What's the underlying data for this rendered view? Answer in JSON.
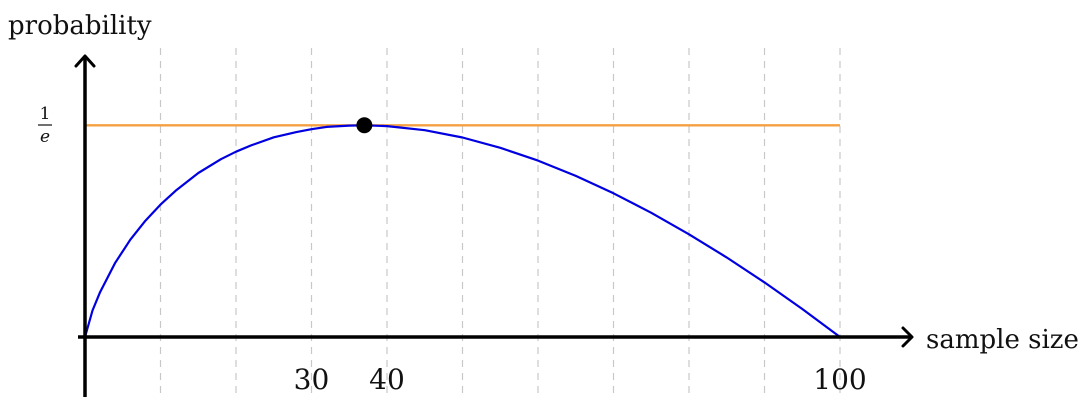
{
  "chart_data": {
    "type": "line",
    "xlabel": "sample size",
    "ylabel": "probability",
    "x_ticks": [
      {
        "value": 30,
        "label": "30"
      },
      {
        "value": 40,
        "label": "40"
      },
      {
        "value": 100,
        "label": "100"
      }
    ],
    "y_tick": {
      "value": 0.3679,
      "numerator": "1",
      "denominator": "e"
    },
    "xlim": [
      0,
      110
    ],
    "ylim": [
      -0.06,
      0.55
    ],
    "gridlines_x": [
      10,
      20,
      30,
      40,
      50,
      60,
      70,
      80,
      90,
      100
    ],
    "grid": "vertical dashed",
    "series": [
      {
        "color": "#0000e0",
        "x": [
          0,
          1,
          2,
          4,
          6,
          8,
          10,
          12,
          15,
          18,
          20,
          22,
          25,
          28,
          30,
          32,
          35,
          37,
          40,
          45,
          50,
          55,
          60,
          65,
          70,
          75,
          80,
          85,
          90,
          95,
          100
        ],
        "y": [
          0,
          0.046,
          0.078,
          0.129,
          0.169,
          0.202,
          0.23,
          0.254,
          0.285,
          0.309,
          0.322,
          0.333,
          0.347,
          0.356,
          0.361,
          0.365,
          0.3674,
          0.3679,
          0.3665,
          0.3593,
          0.3466,
          0.3288,
          0.3065,
          0.28,
          0.2497,
          0.2158,
          0.1785,
          0.1381,
          0.0948,
          0.0487,
          0
        ]
      }
    ],
    "reference_line": {
      "y": 0.3679,
      "x_from": 0,
      "x_to": 100,
      "color": "#f5a040"
    },
    "highlight_point": {
      "x": 37,
      "y": 0.3679,
      "color": "#000000"
    },
    "colors": {
      "axis": "#000000",
      "grid": "#c8c8c8"
    }
  }
}
